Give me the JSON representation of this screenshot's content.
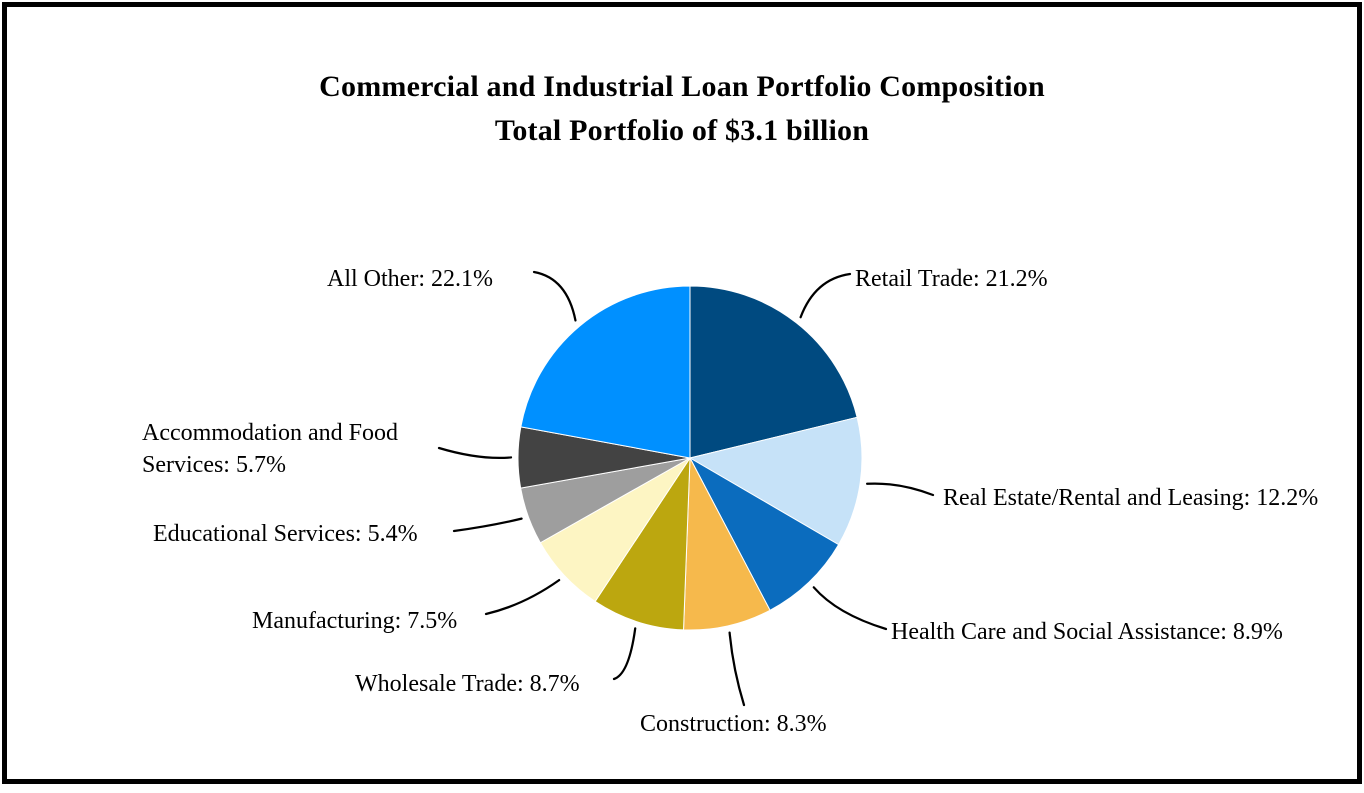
{
  "chart_data": {
    "type": "pie",
    "title": "Commercial and Industrial Loan Portfolio Composition",
    "subtitle": "Total Portfolio of $3.1 billion",
    "total_portfolio": "$3.1 billion",
    "unit": "%",
    "start_angle_deg": 0,
    "direction": "clockwise",
    "legend_position": "callout-labels",
    "segments": [
      {
        "label": "Retail Trade",
        "value": 21.2,
        "color": "#004A80",
        "callout": "Retail Trade: 21.2%"
      },
      {
        "label": "Real Estate/Rental and Leasing",
        "value": 12.2,
        "color": "#C6E2F8",
        "callout": "Real Estate/Rental and Leasing: 12.2%"
      },
      {
        "label": "Health Care and Social Assistance",
        "value": 8.9,
        "color": "#0B6CBE",
        "callout": "Health Care and Social Assistance: 8.9%"
      },
      {
        "label": "Construction",
        "value": 8.3,
        "color": "#F6B94C",
        "callout": "Construction: 8.3%"
      },
      {
        "label": "Wholesale Trade",
        "value": 8.7,
        "color": "#BCA70F",
        "callout": "Wholesale Trade: 8.7%"
      },
      {
        "label": "Manufacturing",
        "value": 7.5,
        "color": "#FDF5C3",
        "callout": "Manufacturing: 7.5%"
      },
      {
        "label": "Educational Services",
        "value": 5.4,
        "color": "#9E9E9E",
        "callout": "Educational Services: 5.4%"
      },
      {
        "label": "Accommodation and Food Services",
        "value": 5.7,
        "color": "#434343",
        "callout": "Accommodation and Food Services: 5.7%"
      },
      {
        "label": "All Other",
        "value": 22.1,
        "color": "#0090FF",
        "callout": "All Other: 22.1%"
      }
    ]
  }
}
